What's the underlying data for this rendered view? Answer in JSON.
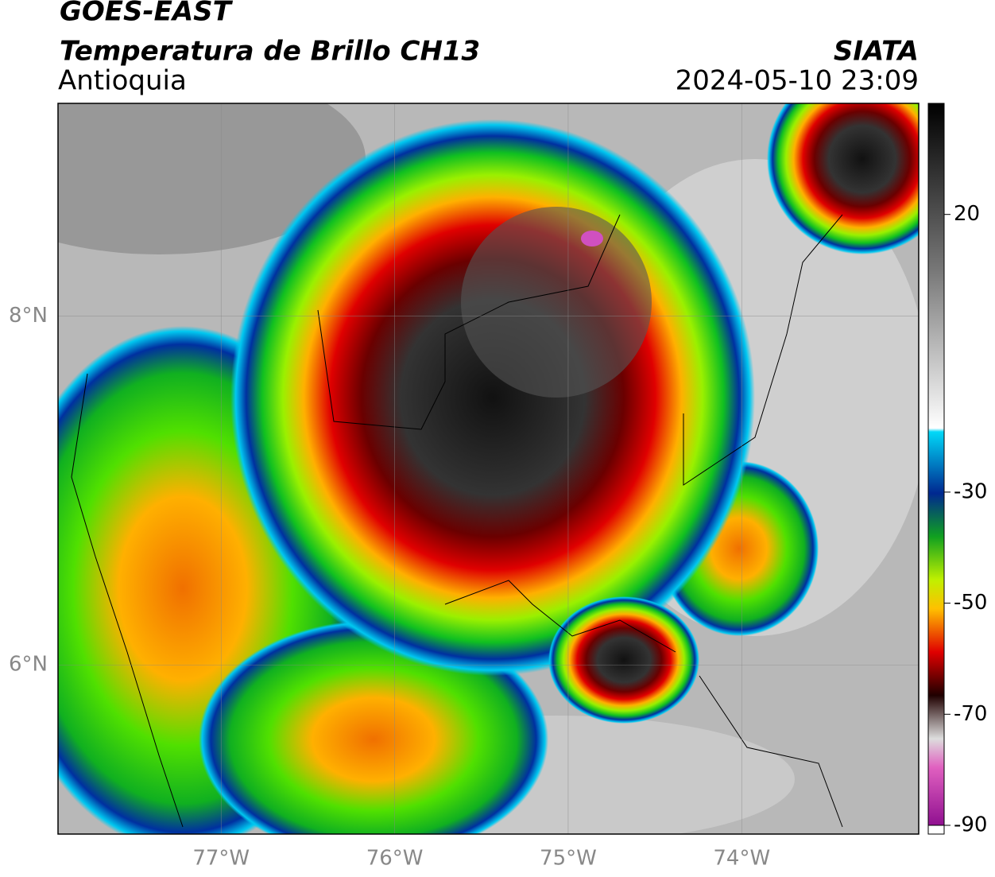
{
  "header": {
    "title": "GOES-EAST",
    "subtitle": "Temperatura de Brillo CH13",
    "region": "Antioquia",
    "source": "SIATA",
    "datetime": "2024-05-10 23:09"
  },
  "map": {
    "lon_range": [
      -77.94,
      -72.98
    ],
    "lat_range": [
      5.03,
      9.22
    ],
    "lon_ticks": [
      {
        "value": -77,
        "label": "77°W"
      },
      {
        "value": -76,
        "label": "76°W"
      },
      {
        "value": -75,
        "label": "75°W"
      },
      {
        "value": -74,
        "label": "74°W"
      }
    ],
    "lat_ticks": [
      {
        "value": 8,
        "label": "8°N"
      },
      {
        "value": 6,
        "label": "6°N"
      }
    ]
  },
  "colorbar": {
    "range": [
      -90,
      40
    ],
    "ticks": [
      20,
      -30,
      -50,
      -70,
      -90
    ]
  }
}
